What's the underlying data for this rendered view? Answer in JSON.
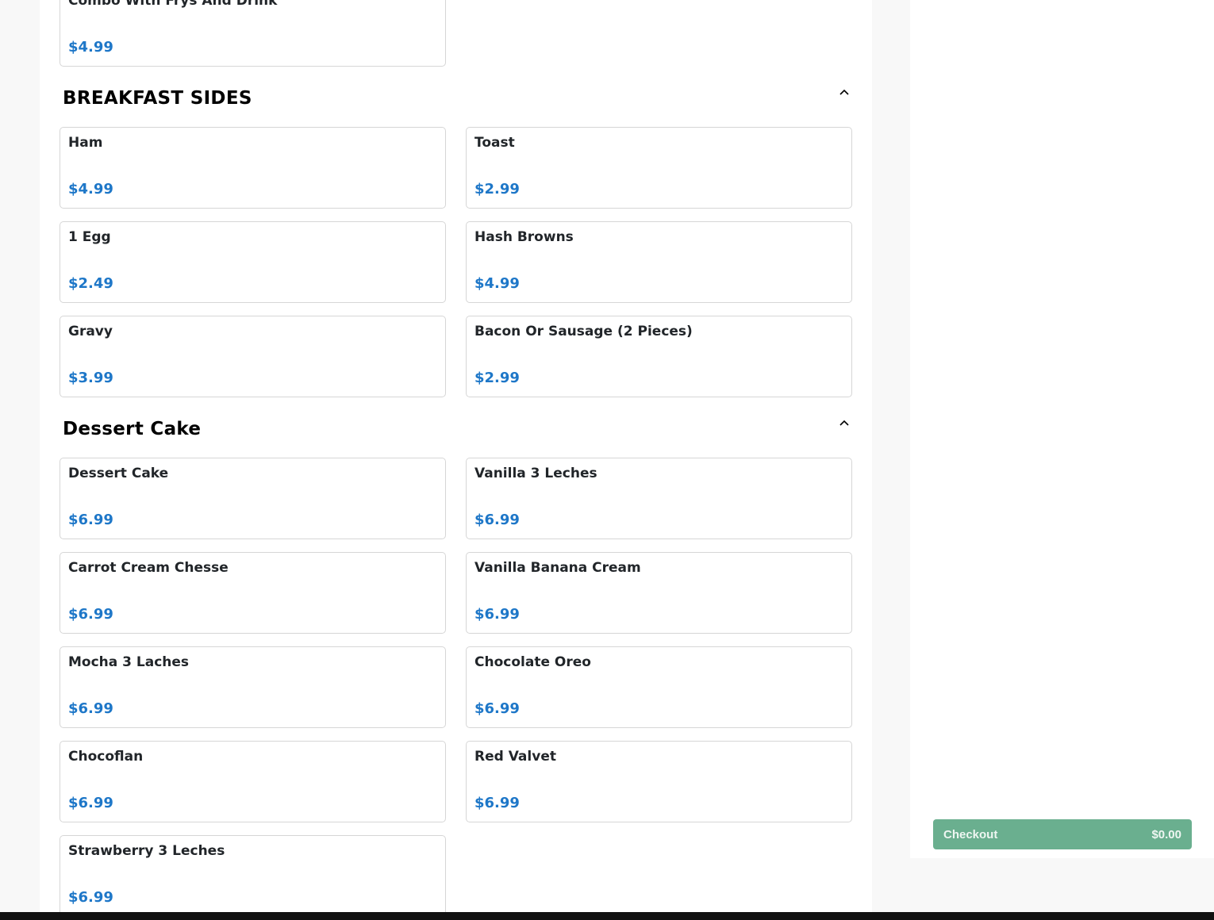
{
  "top_items": [
    {
      "name": "Combo With Frys And Drink",
      "price": "$4.99"
    }
  ],
  "sections": [
    {
      "title": "BREAKFAST SIDES",
      "items": [
        {
          "name": "Ham",
          "price": "$4.99"
        },
        {
          "name": "Toast",
          "price": "$2.99"
        },
        {
          "name": "1 Egg",
          "price": "$2.49"
        },
        {
          "name": "Hash Browns",
          "price": "$4.99"
        },
        {
          "name": "Gravy",
          "price": "$3.99"
        },
        {
          "name": "Bacon Or Sausage (2 Pieces)",
          "price": "$2.99"
        }
      ]
    },
    {
      "title": "Dessert Cake",
      "items": [
        {
          "name": "Dessert Cake",
          "price": "$6.99"
        },
        {
          "name": "Vanilla 3 Leches",
          "price": "$6.99"
        },
        {
          "name": "Carrot Cream Chesse",
          "price": "$6.99"
        },
        {
          "name": "Vanilla Banana Cream",
          "price": "$6.99"
        },
        {
          "name": "Mocha 3 Laches",
          "price": "$6.99"
        },
        {
          "name": "Chocolate Oreo",
          "price": "$6.99"
        },
        {
          "name": "Chocoflan",
          "price": "$6.99"
        },
        {
          "name": "Red Valvet",
          "price": "$6.99"
        },
        {
          "name": "Strawberry 3 Leches",
          "price": "$6.99"
        }
      ]
    }
  ],
  "cart": {
    "checkout_label": "Checkout",
    "total": "$0.00"
  },
  "colors": {
    "price": "#1e77c8",
    "checkout": "#6aaf8f"
  },
  "icons": {
    "section_toggle": "chevron-up-icon"
  }
}
